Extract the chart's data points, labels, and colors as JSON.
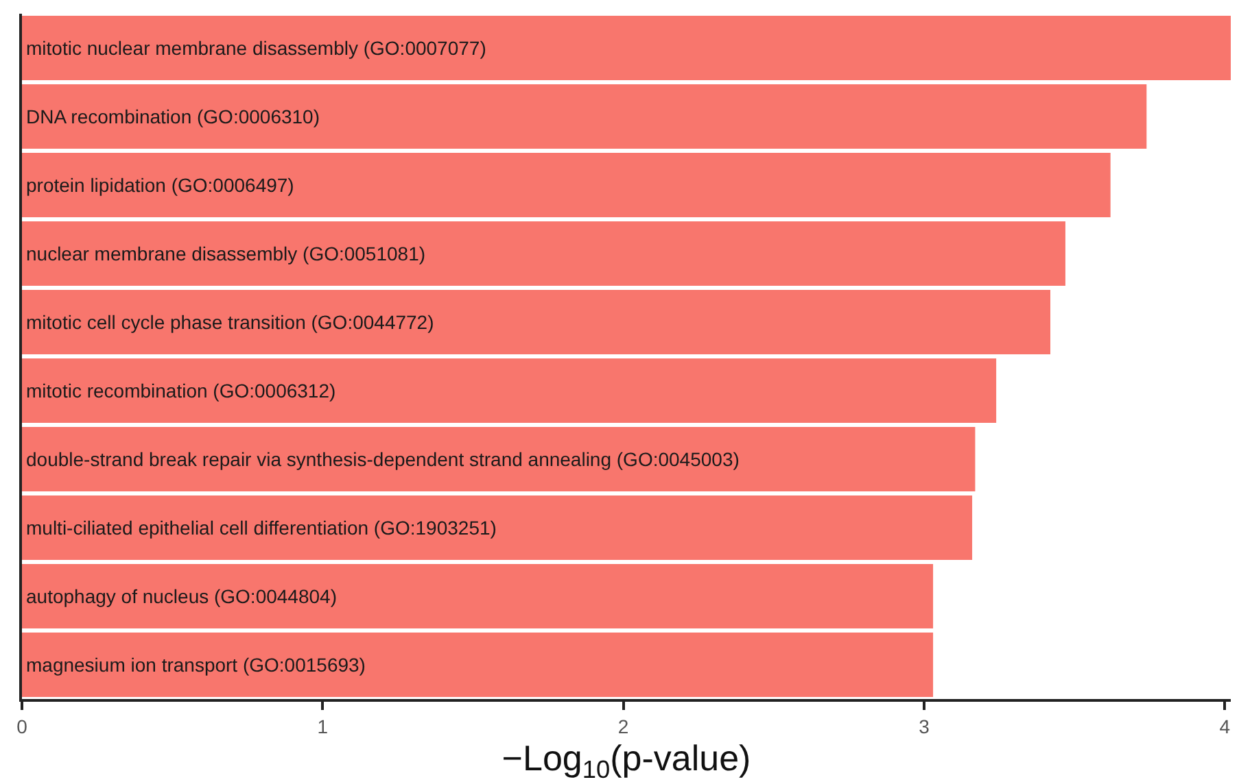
{
  "chart_data": {
    "type": "bar",
    "orientation": "horizontal",
    "xlabel": "−Log$_{10}$(p-value)",
    "categories": [
      "mitotic nuclear membrane disassembly (GO:0007077)",
      "DNA recombination (GO:0006310)",
      "protein lipidation (GO:0006497)",
      "nuclear membrane disassembly (GO:0051081)",
      "mitotic cell cycle phase transition (GO:0044772)",
      "mitotic recombination (GO:0006312)",
      "double-strand break repair via synthesis-dependent strand annealing (GO:0045003)",
      "multi-ciliated epithelial cell differentiation (GO:1903251)",
      "autophagy of nucleus (GO:0044804)",
      "magnesium ion transport (GO:0015693)"
    ],
    "values": [
      4.02,
      3.74,
      3.62,
      3.47,
      3.42,
      3.24,
      3.17,
      3.16,
      3.03,
      3.03
    ],
    "color": "#f8766d",
    "xlim": [
      0,
      4.02
    ],
    "xticks": [
      0,
      1,
      2,
      3,
      4
    ],
    "tick_labels": "x"
  }
}
